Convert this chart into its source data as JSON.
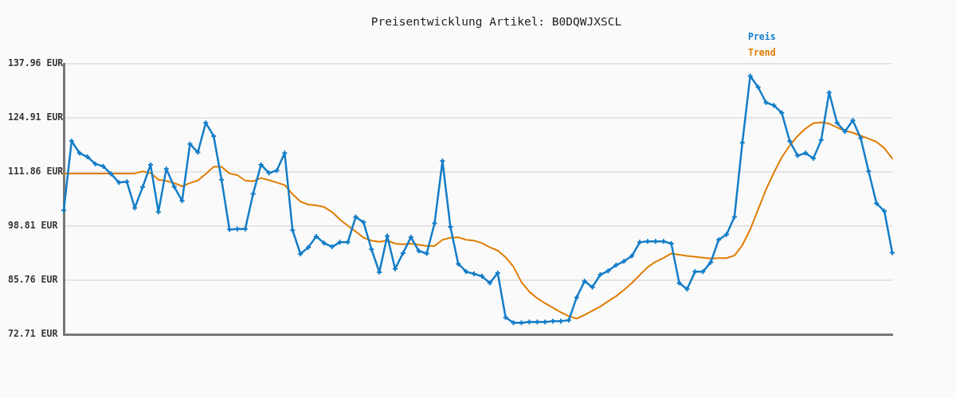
{
  "chart_data": {
    "type": "line",
    "title": "Preisentwicklung Artikel: B0DQWJXSCL",
    "categories": [
      null,
      null,
      null,
      null,
      null,
      null,
      null,
      null,
      null,
      null,
      null,
      null,
      null,
      null,
      null,
      null,
      null,
      null,
      null,
      null,
      null,
      null,
      null,
      null,
      null,
      null,
      null,
      null,
      null,
      null,
      null,
      null,
      null,
      null,
      null,
      null,
      null,
      null,
      null,
      null,
      null,
      null,
      null,
      null,
      null,
      null,
      null,
      null,
      null,
      null,
      null,
      null,
      null,
      null,
      null,
      null,
      null,
      null,
      null,
      null,
      null,
      null,
      null,
      null,
      null,
      null,
      null,
      null,
      null,
      null,
      null,
      null,
      null,
      null,
      null,
      null,
      null,
      null,
      null,
      null,
      null,
      null,
      null,
      null,
      null,
      null,
      null,
      null,
      null,
      null,
      null,
      null,
      null,
      null,
      null,
      null,
      null,
      null,
      null,
      null,
      null,
      null,
      null,
      null,
      null,
      null
    ],
    "series": [
      {
        "name": "Preis",
        "color": "#137dc7",
        "marker": "cross",
        "values": [
          102.6,
          119.3,
          116.4,
          115.5,
          113.8,
          113.2,
          111.4,
          109.3,
          109.5,
          103.2,
          108.2,
          113.6,
          102.2,
          112.6,
          108.3,
          104.9,
          118.6,
          116.6,
          123.7,
          120.5,
          110.0,
          98.0,
          98.1,
          98.1,
          106.6,
          113.6,
          111.6,
          112.2,
          116.4,
          97.8,
          92.1,
          93.7,
          96.3,
          94.7,
          93.8,
          94.9,
          94.9,
          101.0,
          99.7,
          93.2,
          87.7,
          96.4,
          88.5,
          92.3,
          96.1,
          92.8,
          92.2,
          99.5,
          114.5,
          98.6,
          89.7,
          87.8,
          87.3,
          86.7,
          85.1,
          87.5,
          76.8,
          75.5,
          75.5,
          75.7,
          75.7,
          75.7,
          75.9,
          75.9,
          76.1,
          81.6,
          85.5,
          84.1,
          87.1,
          88.0,
          89.4,
          90.3,
          91.6,
          94.9,
          95.1,
          95.1,
          95.1,
          94.6,
          85.1,
          83.6,
          87.8,
          87.8,
          90.1,
          95.5,
          96.8,
          101.0,
          118.9,
          135.0,
          132.3,
          128.6,
          127.9,
          126.1,
          119.3,
          115.8,
          116.4,
          115.1,
          119.6,
          131.0,
          123.7,
          121.6,
          124.3,
          120.0,
          112.0,
          104.3,
          102.4,
          92.4
        ]
      },
      {
        "name": "Trend",
        "color": "#e07c00",
        "marker": "none",
        "values": [
          111.5,
          111.5,
          111.5,
          111.5,
          111.5,
          111.5,
          111.5,
          111.5,
          111.5,
          111.5,
          112.0,
          111.6,
          110.0,
          109.7,
          109.2,
          108.4,
          109.2,
          109.8,
          111.4,
          113.1,
          113.1,
          111.5,
          111.1,
          109.8,
          109.6,
          110.4,
          109.9,
          109.3,
          108.7,
          106.5,
          104.7,
          104.0,
          103.8,
          103.4,
          102.2,
          100.4,
          98.9,
          97.5,
          96.0,
          95.3,
          95.0,
          95.3,
          94.6,
          94.4,
          94.6,
          94.3,
          94.0,
          94.0,
          95.5,
          96.0,
          96.1,
          95.5,
          95.3,
          94.7,
          93.7,
          92.9,
          91.3,
          89.0,
          85.3,
          83.0,
          81.4,
          80.2,
          79.1,
          78.0,
          77.1,
          76.5,
          77.4,
          78.4,
          79.4,
          80.7,
          81.9,
          83.4,
          85.1,
          87.0,
          88.9,
          90.2,
          91.1,
          92.2,
          91.9,
          91.6,
          91.4,
          91.2,
          91.0,
          91.1,
          91.1,
          91.7,
          94.2,
          98.0,
          102.8,
          107.6,
          111.7,
          115.4,
          118.2,
          120.5,
          122.3,
          123.6,
          123.8,
          123.5,
          122.6,
          121.8,
          121.3,
          120.6,
          119.9,
          119.1,
          117.6,
          115.1
        ]
      }
    ],
    "ylim": [
      72.71,
      137.96
    ],
    "yticks": [
      {
        "value": 72.71,
        "label": "72.71 EUR"
      },
      {
        "value": 85.76,
        "label": "85.76 EUR"
      },
      {
        "value": 98.81,
        "label": "98.81 EUR"
      },
      {
        "value": 111.86,
        "label": "111.86 EUR"
      },
      {
        "value": 124.91,
        "label": "124.91 EUR"
      },
      {
        "value": 137.96,
        "label": "137.96 EUR"
      }
    ],
    "grid": "y",
    "legend": "top right",
    "tick_labels": "y"
  }
}
